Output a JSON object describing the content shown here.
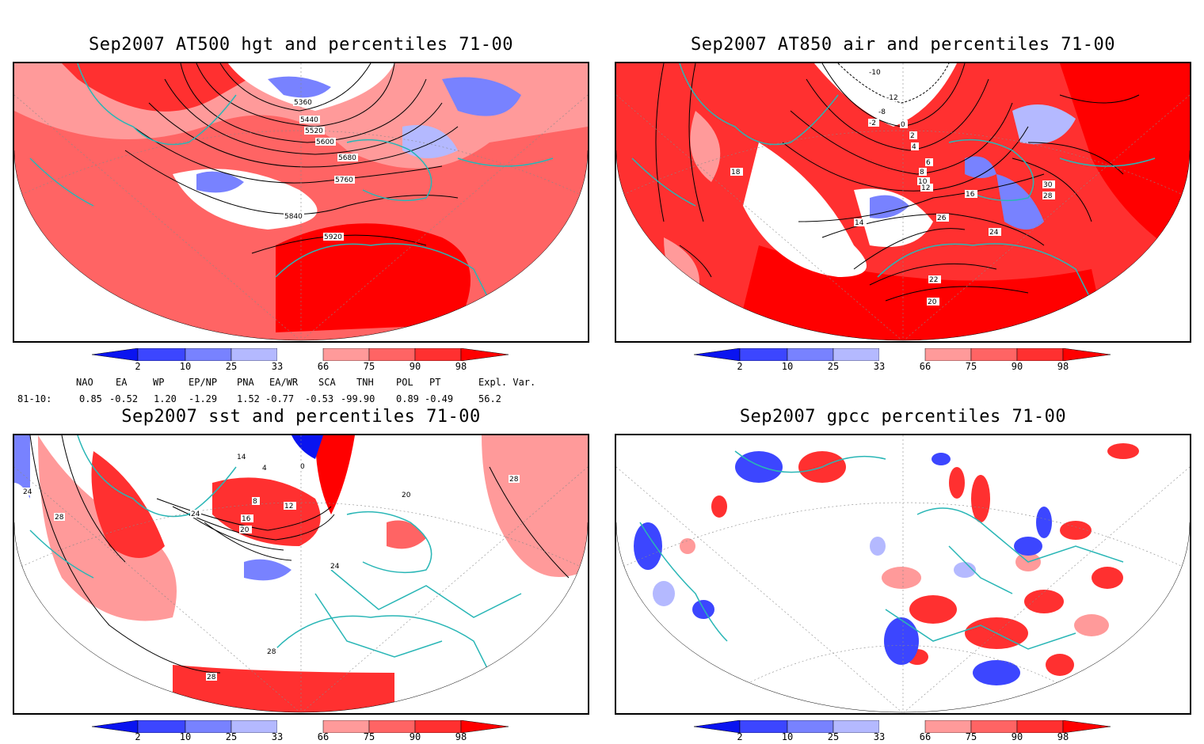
{
  "panels": [
    {
      "id": "p1",
      "title": "Sep2007 AT500 hgt and percentiles 71-00",
      "contour_labels": [
        "5360",
        "5440",
        "5520",
        "5600",
        "5680",
        "5760",
        "5840",
        "5920"
      ]
    },
    {
      "id": "p2",
      "title": "Sep2007 AT850 air and percentiles 71-00",
      "contour_labels": [
        "-10",
        "-12",
        "-8",
        "-2",
        "0",
        "2",
        "4",
        "6",
        "8",
        "10",
        "12",
        "14",
        "16",
        "18",
        "20",
        "22",
        "24",
        "26",
        "28",
        "30"
      ]
    },
    {
      "id": "p3",
      "title": "Sep2007 sst and percentiles 71-00",
      "contour_labels": [
        "24",
        "28",
        "20",
        "16",
        "12",
        "8",
        "4",
        "0",
        "14"
      ]
    },
    {
      "id": "p4",
      "title": "Sep2007 gpcc percentiles 71-00",
      "contour_labels": []
    }
  ],
  "colorbar": {
    "ticks": [
      "2",
      "10",
      "25",
      "33",
      "66",
      "75",
      "90",
      "98"
    ],
    "colors": {
      "blue_dark": "#0a14f0",
      "blue_mid": "#3c46ff",
      "blue_light": "#7882ff",
      "blue_pale": "#b4b9ff",
      "white": "#ffffff",
      "red_pale": "#ff9a9a",
      "red_light": "#ff6464",
      "red_mid": "#ff3030",
      "red_dark": "#ff0000"
    }
  },
  "teleconnection": {
    "headers": [
      "NAO",
      "EA",
      "WP",
      "EP/NP",
      "PNA",
      "EA/WR",
      "SCA",
      "TNH",
      "POL",
      "PT",
      "Expl. Var."
    ],
    "row_label": "81-10:",
    "values": [
      "0.85",
      "-0.52",
      "1.20",
      "-1.29",
      "1.52",
      "-0.77",
      "-0.53",
      "-99.90",
      "0.89",
      "-0.49",
      "56.2"
    ]
  },
  "colors": {
    "coastline": "#29b6b6",
    "contour": "#000000",
    "grid": "#888888"
  }
}
